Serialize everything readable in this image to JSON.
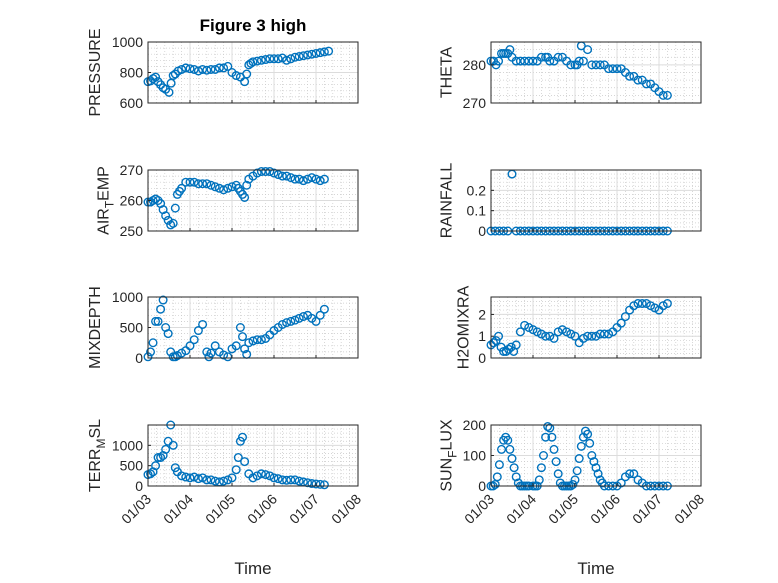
{
  "figure": {
    "title": "Figure 3 high",
    "x_label": "Time",
    "marker_color": "#0072bd",
    "x_tick_labels": [
      "01/03",
      "01/04",
      "01/05",
      "01/06",
      "01/07",
      "01/08"
    ]
  },
  "chart_data": [
    {
      "type": "scatter",
      "title": "Figure 3 high",
      "ylabel": "PRESSURE",
      "xlabel": "",
      "xlim": [
        0,
        5
      ],
      "ylim": [
        600,
        1000
      ],
      "yticks": [
        600,
        800,
        1000
      ],
      "grid": "major and minor",
      "x": [
        0.0,
        0.06,
        0.12,
        0.18,
        0.24,
        0.3,
        0.36,
        0.42,
        0.5,
        0.55,
        0.6,
        0.65,
        0.72,
        0.8,
        0.9,
        1.0,
        1.1,
        1.2,
        1.3,
        1.4,
        1.5,
        1.6,
        1.7,
        1.8,
        1.9,
        2.0,
        2.1,
        2.2,
        2.3,
        2.35,
        2.4,
        2.45,
        2.5,
        2.6,
        2.7,
        2.8,
        2.9,
        3.0,
        3.1,
        3.2,
        3.3,
        3.4,
        3.5,
        3.6,
        3.7,
        3.8,
        3.9,
        4.0,
        4.1,
        4.2,
        4.3
      ],
      "y": [
        740,
        745,
        760,
        770,
        740,
        720,
        700,
        690,
        670,
        730,
        780,
        790,
        810,
        820,
        830,
        825,
        820,
        810,
        820,
        815,
        820,
        820,
        830,
        830,
        840,
        800,
        780,
        770,
        740,
        790,
        850,
        860,
        870,
        875,
        880,
        885,
        890,
        890,
        890,
        895,
        880,
        890,
        900,
        905,
        910,
        915,
        920,
        925,
        930,
        935,
        940
      ]
    },
    {
      "type": "scatter",
      "title": "",
      "ylabel": "THETA",
      "xlabel": "",
      "xlim": [
        0,
        5
      ],
      "ylim": [
        270,
        286
      ],
      "yticks": [
        270,
        280
      ],
      "grid": "major and minor",
      "x": [
        0.0,
        0.06,
        0.12,
        0.18,
        0.25,
        0.3,
        0.35,
        0.4,
        0.45,
        0.5,
        0.6,
        0.7,
        0.8,
        0.9,
        1.0,
        1.1,
        1.2,
        1.3,
        1.35,
        1.4,
        1.5,
        1.6,
        1.7,
        1.8,
        1.9,
        2.0,
        2.05,
        2.1,
        2.15,
        2.2,
        2.3,
        2.4,
        2.5,
        2.6,
        2.7,
        2.8,
        2.9,
        3.0,
        3.1,
        3.2,
        3.3,
        3.4,
        3.5,
        3.6,
        3.7,
        3.8,
        3.9,
        4.0,
        4.1,
        4.2
      ],
      "y": [
        281,
        281,
        280,
        281,
        283,
        283,
        283,
        283,
        284,
        282,
        281,
        281,
        281,
        281,
        281,
        281,
        282,
        282,
        282,
        281,
        281,
        282,
        282,
        281,
        280,
        280,
        280,
        281,
        285,
        281,
        284,
        280,
        280,
        280,
        280,
        279,
        279,
        279,
        279,
        278,
        277,
        277,
        276,
        276,
        275,
        275,
        274,
        273,
        272,
        272
      ]
    },
    {
      "type": "scatter",
      "title": "",
      "ylabel": "AIR_TEMP",
      "xlabel": "",
      "xlim": [
        0,
        5
      ],
      "ylim": [
        250,
        270
      ],
      "yticks": [
        250,
        260,
        270
      ],
      "grid": "major and minor",
      "x": [
        0.0,
        0.06,
        0.12,
        0.18,
        0.24,
        0.3,
        0.36,
        0.42,
        0.48,
        0.54,
        0.6,
        0.65,
        0.7,
        0.75,
        0.8,
        0.9,
        1.0,
        1.1,
        1.2,
        1.3,
        1.4,
        1.5,
        1.6,
        1.7,
        1.8,
        1.9,
        2.0,
        2.1,
        2.15,
        2.2,
        2.25,
        2.3,
        2.35,
        2.4,
        2.5,
        2.6,
        2.7,
        2.8,
        2.9,
        3.0,
        3.1,
        3.2,
        3.3,
        3.4,
        3.5,
        3.6,
        3.7,
        3.8,
        3.9,
        4.0,
        4.1,
        4.2
      ],
      "y": [
        259.5,
        259.5,
        260,
        260.5,
        260,
        259,
        257,
        255,
        253.5,
        252,
        252.5,
        257.5,
        262,
        263,
        264,
        266,
        266,
        266,
        265.5,
        265.5,
        265.5,
        265,
        264.5,
        264,
        263.5,
        264,
        264.5,
        265,
        264,
        263,
        262,
        261,
        265,
        267,
        268,
        269,
        269.5,
        269.5,
        269.5,
        269,
        268.5,
        268,
        268,
        267.5,
        267,
        267,
        266.5,
        267,
        267.5,
        267,
        266.5,
        267
      ]
    },
    {
      "type": "scatter",
      "title": "",
      "ylabel": "RAINFALL",
      "xlabel": "",
      "xlim": [
        0,
        5
      ],
      "ylim": [
        0,
        0.3
      ],
      "yticks": [
        0,
        0.1,
        0.2
      ],
      "grid": "major and minor",
      "x": [
        0.0,
        0.1,
        0.2,
        0.3,
        0.4,
        0.5,
        0.6,
        0.7,
        0.8,
        0.9,
        1.0,
        1.1,
        1.2,
        1.3,
        1.4,
        1.5,
        1.6,
        1.7,
        1.8,
        1.9,
        2.0,
        2.1,
        2.2,
        2.3,
        2.4,
        2.5,
        2.6,
        2.7,
        2.8,
        2.9,
        3.0,
        3.1,
        3.2,
        3.3,
        3.4,
        3.5,
        3.6,
        3.7,
        3.8,
        3.9,
        4.0,
        4.1,
        4.2
      ],
      "y": [
        0,
        0,
        0,
        0,
        0,
        0.28,
        0,
        0,
        0,
        0,
        0,
        0,
        0,
        0,
        0,
        0,
        0,
        0,
        0,
        0,
        0,
        0,
        0,
        0,
        0,
        0,
        0,
        0,
        0,
        0,
        0,
        0,
        0,
        0,
        0,
        0,
        0,
        0,
        0,
        0,
        0,
        0,
        0
      ]
    },
    {
      "type": "scatter",
      "title": "",
      "ylabel": "MIXDEPTH",
      "xlabel": "",
      "xlim": [
        0,
        5
      ],
      "ylim": [
        0,
        1000
      ],
      "yticks": [
        0,
        500,
        1000
      ],
      "grid": "major and minor",
      "x": [
        0.0,
        0.06,
        0.12,
        0.18,
        0.24,
        0.3,
        0.36,
        0.42,
        0.48,
        0.54,
        0.6,
        0.65,
        0.7,
        0.8,
        0.9,
        1.0,
        1.1,
        1.2,
        1.3,
        1.4,
        1.45,
        1.5,
        1.6,
        1.7,
        1.8,
        1.9,
        2.0,
        2.1,
        2.2,
        2.25,
        2.3,
        2.35,
        2.4,
        2.5,
        2.6,
        2.7,
        2.8,
        2.9,
        3.0,
        3.1,
        3.2,
        3.3,
        3.4,
        3.5,
        3.6,
        3.7,
        3.8,
        3.9,
        4.0,
        4.1,
        4.2
      ],
      "y": [
        20,
        100,
        250,
        600,
        600,
        800,
        950,
        500,
        400,
        100,
        20,
        20,
        40,
        80,
        120,
        200,
        300,
        450,
        550,
        100,
        20,
        80,
        200,
        100,
        50,
        20,
        150,
        200,
        500,
        350,
        150,
        60,
        250,
        280,
        300,
        300,
        320,
        380,
        450,
        500,
        550,
        580,
        600,
        620,
        650,
        680,
        700,
        650,
        600,
        700,
        800
      ]
    },
    {
      "type": "scatter",
      "title": "",
      "ylabel": "H2OMIXRA",
      "xlabel": "",
      "xlim": [
        0,
        5
      ],
      "ylim": [
        0,
        2.8
      ],
      "yticks": [
        0,
        1,
        2
      ],
      "grid": "major and minor",
      "x": [
        0.0,
        0.06,
        0.12,
        0.18,
        0.24,
        0.3,
        0.36,
        0.42,
        0.48,
        0.54,
        0.6,
        0.7,
        0.8,
        0.9,
        1.0,
        1.1,
        1.2,
        1.3,
        1.4,
        1.5,
        1.6,
        1.7,
        1.8,
        1.9,
        2.0,
        2.1,
        2.2,
        2.3,
        2.4,
        2.5,
        2.6,
        2.7,
        2.8,
        2.9,
        3.0,
        3.1,
        3.2,
        3.3,
        3.4,
        3.5,
        3.6,
        3.7,
        3.8,
        3.9,
        4.0,
        4.1,
        4.2
      ],
      "y": [
        0.6,
        0.7,
        0.8,
        1.0,
        0.5,
        0.3,
        0.3,
        0.4,
        0.5,
        0.3,
        0.6,
        1.2,
        1.5,
        1.4,
        1.3,
        1.2,
        1.1,
        1.0,
        1.0,
        0.9,
        1.2,
        1.3,
        1.2,
        1.1,
        1.0,
        0.7,
        0.9,
        1.0,
        1.0,
        1.0,
        1.1,
        1.1,
        1.1,
        1.2,
        1.4,
        1.6,
        1.9,
        2.2,
        2.4,
        2.5,
        2.5,
        2.5,
        2.4,
        2.3,
        2.2,
        2.4,
        2.5
      ]
    },
    {
      "type": "scatter",
      "title": "",
      "ylabel": "TERR_MSL",
      "xlabel": "Time",
      "xlim": [
        0,
        5
      ],
      "ylim": [
        0,
        1500
      ],
      "yticks": [
        0,
        500,
        1000
      ],
      "xticklabels": [
        "01/03",
        "01/04",
        "01/05",
        "01/06",
        "01/07",
        "01/08"
      ],
      "grid": "major and minor",
      "x": [
        0.0,
        0.06,
        0.12,
        0.18,
        0.24,
        0.3,
        0.36,
        0.42,
        0.48,
        0.54,
        0.6,
        0.65,
        0.7,
        0.8,
        0.9,
        1.0,
        1.1,
        1.2,
        1.3,
        1.4,
        1.5,
        1.6,
        1.7,
        1.8,
        1.9,
        2.0,
        2.1,
        2.15,
        2.2,
        2.25,
        2.3,
        2.4,
        2.5,
        2.6,
        2.7,
        2.8,
        2.9,
        3.0,
        3.1,
        3.2,
        3.3,
        3.4,
        3.5,
        3.6,
        3.7,
        3.8,
        3.9,
        4.0,
        4.1,
        4.2
      ],
      "y": [
        280,
        300,
        350,
        500,
        700,
        700,
        750,
        900,
        1100,
        1500,
        1000,
        450,
        350,
        250,
        220,
        200,
        220,
        180,
        200,
        150,
        150,
        120,
        100,
        120,
        150,
        200,
        400,
        700,
        1100,
        1200,
        600,
        300,
        200,
        250,
        300,
        280,
        250,
        200,
        180,
        150,
        140,
        150,
        150,
        120,
        100,
        80,
        60,
        50,
        40,
        30
      ]
    },
    {
      "type": "scatter",
      "title": "",
      "ylabel": "SUN_FLUX",
      "xlabel": "Time",
      "xlim": [
        0,
        5
      ],
      "ylim": [
        0,
        200
      ],
      "yticks": [
        0,
        100,
        200
      ],
      "xticklabels": [
        "01/03",
        "01/04",
        "01/05",
        "01/06",
        "01/07",
        "01/08"
      ],
      "grid": "major and minor",
      "x": [
        0.0,
        0.05,
        0.1,
        0.15,
        0.2,
        0.25,
        0.3,
        0.35,
        0.4,
        0.45,
        0.5,
        0.55,
        0.6,
        0.65,
        0.7,
        0.75,
        0.8,
        0.85,
        0.9,
        1.0,
        1.05,
        1.1,
        1.15,
        1.2,
        1.25,
        1.3,
        1.35,
        1.4,
        1.45,
        1.5,
        1.55,
        1.6,
        1.65,
        1.7,
        1.75,
        1.8,
        1.85,
        1.9,
        1.95,
        2.0,
        2.05,
        2.1,
        2.15,
        2.2,
        2.25,
        2.3,
        2.35,
        2.4,
        2.45,
        2.5,
        2.55,
        2.6,
        2.65,
        2.7,
        2.8,
        2.9,
        3.0,
        3.1,
        3.2,
        3.3,
        3.4,
        3.5,
        3.6,
        3.7,
        3.8,
        3.9,
        4.0,
        4.1,
        4.2
      ],
      "y": [
        0,
        0,
        5,
        30,
        70,
        120,
        150,
        160,
        150,
        120,
        90,
        60,
        30,
        10,
        0,
        0,
        0,
        0,
        0,
        0,
        0,
        0,
        20,
        60,
        100,
        160,
        195,
        190,
        160,
        120,
        80,
        40,
        10,
        0,
        0,
        0,
        0,
        0,
        5,
        20,
        50,
        90,
        130,
        160,
        180,
        170,
        140,
        100,
        80,
        60,
        40,
        20,
        10,
        0,
        0,
        0,
        0,
        10,
        30,
        40,
        40,
        20,
        10,
        0,
        0,
        0,
        0,
        0,
        0
      ]
    }
  ]
}
